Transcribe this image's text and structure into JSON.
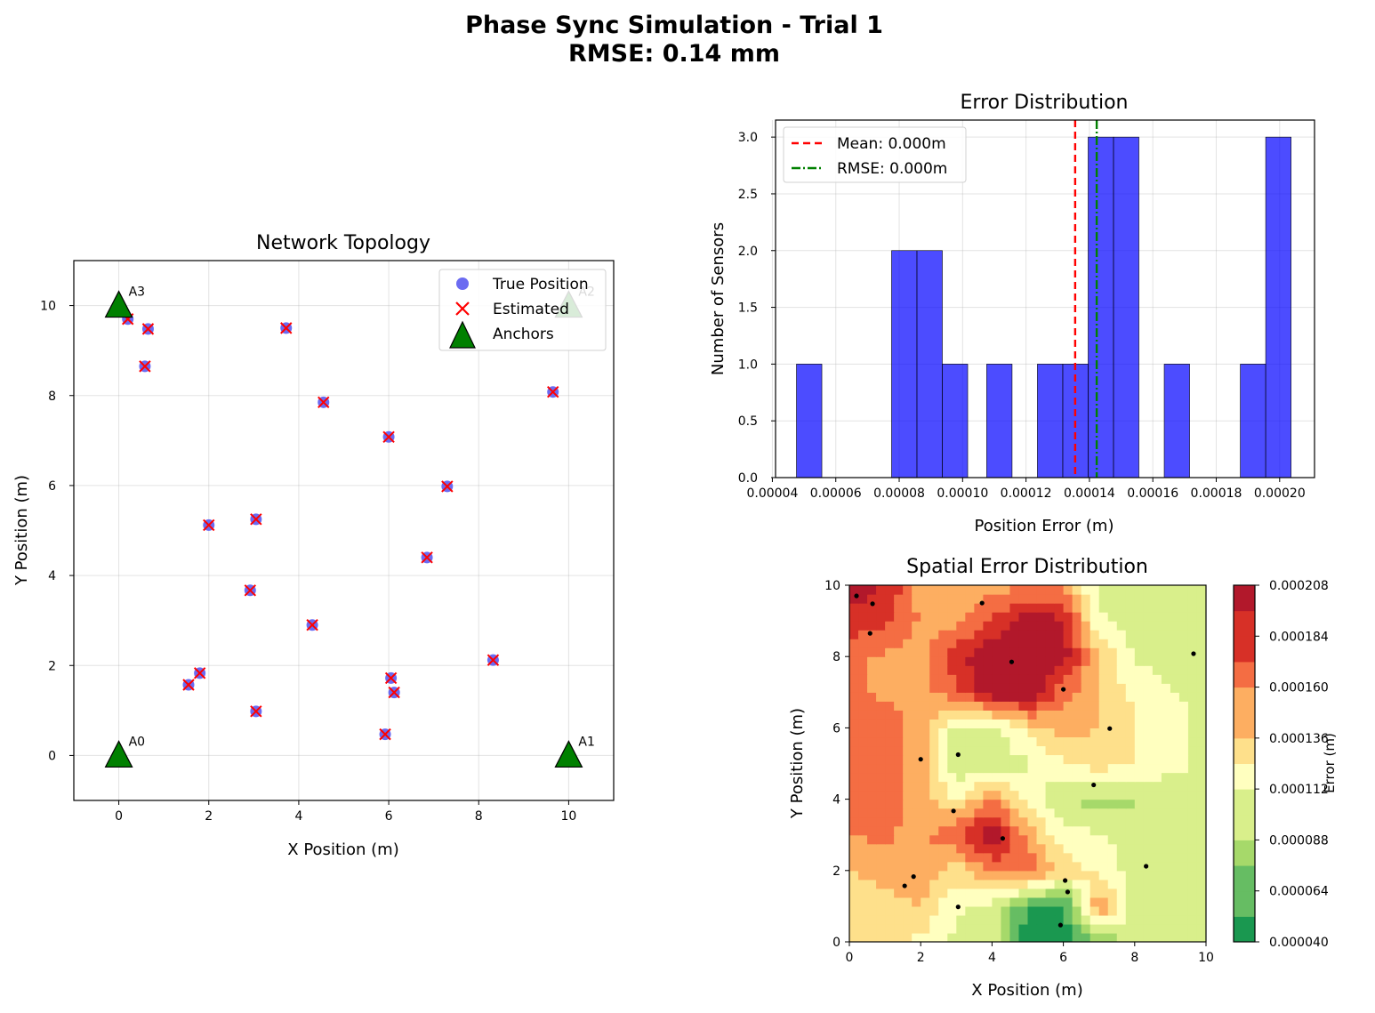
{
  "figure": {
    "title_line1": "Phase Sync Simulation - Trial 1",
    "title_line2": "RMSE: 0.14 mm"
  },
  "chart_data": [
    {
      "type": "scatter",
      "title": "Network Topology",
      "xlabel": "X Position (m)",
      "ylabel": "Y Position (m)",
      "xlim": [
        -1,
        11
      ],
      "ylim": [
        -1,
        11
      ],
      "xticks": [
        0,
        2,
        4,
        6,
        8,
        10
      ],
      "yticks": [
        0,
        2,
        4,
        6,
        8,
        10
      ],
      "grid": true,
      "legend_position": "top-right",
      "legend": [
        "True Position",
        "Estimated",
        "Anchors"
      ],
      "colors": {
        "true": "#5b5bf0",
        "estimated": "#ff0000",
        "anchors": "#008000"
      },
      "anchors": [
        {
          "label": "A0",
          "x": 0,
          "y": 0
        },
        {
          "label": "A1",
          "x": 10,
          "y": 0
        },
        {
          "label": "A2",
          "x": 10,
          "y": 10
        },
        {
          "label": "A3",
          "x": 0,
          "y": 10
        }
      ],
      "sensors": [
        {
          "x": 0.2,
          "y": 9.7
        },
        {
          "x": 0.65,
          "y": 9.48
        },
        {
          "x": 0.58,
          "y": 8.65
        },
        {
          "x": 3.72,
          "y": 9.5
        },
        {
          "x": 4.55,
          "y": 7.85
        },
        {
          "x": 9.65,
          "y": 8.08
        },
        {
          "x": 6.0,
          "y": 7.08
        },
        {
          "x": 7.3,
          "y": 5.98
        },
        {
          "x": 2.0,
          "y": 5.12
        },
        {
          "x": 3.05,
          "y": 5.25
        },
        {
          "x": 6.85,
          "y": 4.4
        },
        {
          "x": 2.92,
          "y": 3.67
        },
        {
          "x": 4.3,
          "y": 2.9
        },
        {
          "x": 8.32,
          "y": 2.12
        },
        {
          "x": 1.8,
          "y": 1.83
        },
        {
          "x": 1.55,
          "y": 1.57
        },
        {
          "x": 6.05,
          "y": 1.72
        },
        {
          "x": 6.12,
          "y": 1.4
        },
        {
          "x": 3.05,
          "y": 0.98
        },
        {
          "x": 5.92,
          "y": 0.47
        }
      ]
    },
    {
      "type": "bar",
      "title": "Error Distribution",
      "xlabel": "Position Error (m)",
      "ylabel": "Number of Sensors",
      "xlim": [
        4.1e-05,
        0.000211
      ],
      "ylim": [
        0,
        3.15
      ],
      "xticks": [
        "0.00004",
        "0.00006",
        "0.00008",
        "0.00010",
        "0.00012",
        "0.00014",
        "0.00016",
        "0.00018",
        "0.00020"
      ],
      "yticks": [
        "0.0",
        "0.5",
        "1.0",
        "1.5",
        "2.0",
        "2.5",
        "3.0"
      ],
      "grid": true,
      "legend_position": "top-left",
      "bar_color": "#0000ff",
      "bins": [
        {
          "x0": 4.76e-05,
          "x1": 5.56e-05,
          "count": 1
        },
        {
          "x0": 7.76e-05,
          "x1": 8.56e-05,
          "count": 2
        },
        {
          "x0": 8.56e-05,
          "x1": 9.36e-05,
          "count": 2
        },
        {
          "x0": 9.36e-05,
          "x1": 0.0001016,
          "count": 1
        },
        {
          "x0": 0.0001076,
          "x1": 0.0001156,
          "count": 1
        },
        {
          "x0": 0.0001236,
          "x1": 0.0001316,
          "count": 1
        },
        {
          "x0": 0.0001316,
          "x1": 0.0001396,
          "count": 1
        },
        {
          "x0": 0.0001396,
          "x1": 0.0001476,
          "count": 3
        },
        {
          "x0": 0.0001476,
          "x1": 0.0001556,
          "count": 3
        },
        {
          "x0": 0.0001636,
          "x1": 0.0001716,
          "count": 1
        },
        {
          "x0": 0.0001876,
          "x1": 0.0001956,
          "count": 1
        },
        {
          "x0": 0.0001956,
          "x1": 0.0002036,
          "count": 3
        }
      ],
      "lines": [
        {
          "label": "Mean: 0.000m",
          "value": 0.0001355,
          "color": "#ff0000",
          "style": "dashed"
        },
        {
          "label": "RMSE: 0.000m",
          "value": 0.0001423,
          "color": "#008000",
          "style": "dashdot"
        }
      ]
    },
    {
      "type": "heatmap",
      "title": "Spatial Error Distribution",
      "xlabel": "X Position (m)",
      "ylabel": "Y Position (m)",
      "xlim": [
        0,
        10
      ],
      "ylim": [
        0,
        10
      ],
      "xticks": [
        0,
        2,
        4,
        6,
        8,
        10
      ],
      "yticks": [
        0,
        2,
        4,
        6,
        8,
        10
      ],
      "colorbar_label": "Error (m)",
      "colorbar_range": [
        4e-05,
        0.000208
      ],
      "colorbar_ticks": [
        "0.000040",
        "0.000064",
        "0.000088",
        "0.000112",
        "0.000136",
        "0.000160",
        "0.000184",
        "0.000208"
      ],
      "colorscale": [
        "#1a9850",
        "#66bd63",
        "#a6d96a",
        "#d9ef8b",
        "#ffffbf",
        "#fee08b",
        "#fdae61",
        "#f46d43",
        "#d73027",
        "#b2182b"
      ],
      "point_color": "#000000",
      "grid_values": [
        [
          0.000125,
          0.000128,
          0.000119,
          0.000104,
          9.8e-05,
          4.8e-05,
          4.5e-05,
          7e-05,
          9.8e-05,
          9.8e-05,
          9.9e-05
        ],
        [
          0.000128,
          0.000132,
          0.00014,
          0.00011,
          0.0001,
          5.5e-05,
          5e-05,
          0.00016,
          9.8e-05,
          9.9e-05,
          0.0001
        ],
        [
          0.00014,
          0.00015,
          0.000155,
          0.00013,
          0.00016,
          0.00017,
          0.000135,
          0.00012,
          9.8e-05,
          9.9e-05,
          0.0001
        ],
        [
          0.000158,
          0.00016,
          0.00015,
          0.000175,
          0.000205,
          0.00015,
          0.000112,
          0.00011,
          0.0001,
          0.0001,
          0.000101
        ],
        [
          0.00017,
          0.000168,
          0.00015,
          0.00012,
          0.00016,
          0.00012,
          9e-05,
          8.5e-05,
          8.8e-05,
          0.0001,
          0.000102
        ],
        [
          0.00017,
          0.000168,
          0.00015,
          9.5e-05,
          9.5e-05,
          0.000105,
          0.00012,
          0.000132,
          0.000125,
          0.00011,
          0.000105
        ],
        [
          0.00017,
          0.000168,
          0.00015,
          0.0001,
          0.0001,
          0.00013,
          0.00015,
          0.00014,
          0.000125,
          0.00011,
          0.000105
        ],
        [
          0.00016,
          0.000155,
          0.00015,
          0.00017,
          0.000205,
          0.000205,
          0.000165,
          0.00014,
          0.00012,
          0.000108,
          0.000105
        ],
        [
          0.00016,
          0.000155,
          0.00015,
          0.00019,
          0.000205,
          0.000205,
          0.0002,
          0.00014,
          0.000105,
          0.000102,
          0.0001
        ],
        [
          0.000185,
          0.00018,
          0.000155,
          0.00015,
          0.000175,
          0.000205,
          0.000195,
          0.00011,
          9.8e-05,
          0.0001,
          0.0001
        ],
        [
          0.0002,
          0.00019,
          0.00015,
          0.00015,
          0.00015,
          0.000155,
          0.000155,
          0.0001,
          9.8e-05,
          0.0001,
          0.0001
        ]
      ]
    }
  ]
}
